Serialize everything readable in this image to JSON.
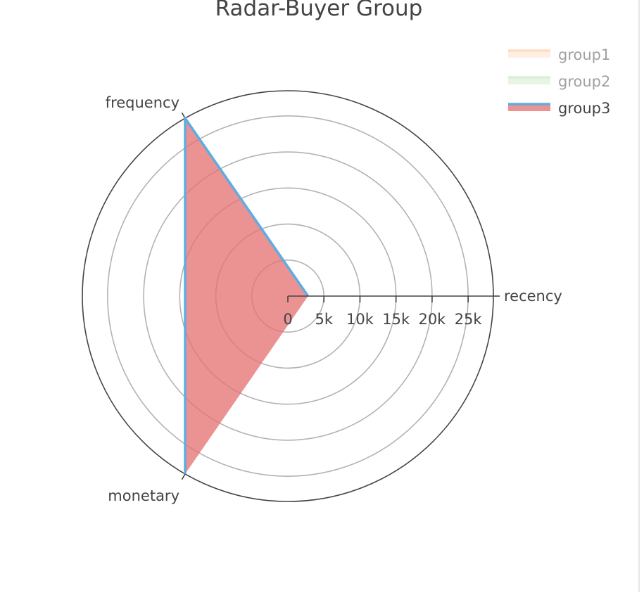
{
  "chart_data": {
    "type": "radar",
    "title": "Radar-Buyer Group",
    "axes": [
      "recency",
      "frequency",
      "monetary"
    ],
    "radial_range": [
      0,
      28500
    ],
    "radial_ticks": [
      0,
      5000,
      10000,
      15000,
      20000,
      25000
    ],
    "radial_tick_labels": [
      "0",
      "5k",
      "10k",
      "15k",
      "20k",
      "25k"
    ],
    "gridlines": true,
    "legend_position": "top-right",
    "series": [
      {
        "name": "group1",
        "values": [
          0,
          0,
          0
        ],
        "line_color": "#ffbb88",
        "fill_color": "#ffd9bf",
        "visible": false
      },
      {
        "name": "group2",
        "values": [
          0,
          0,
          0
        ],
        "line_color": "#b9e0b0",
        "fill_color": "#cdeac6",
        "visible": false
      },
      {
        "name": "group3",
        "values": [
          2800,
          28500,
          28500
        ],
        "line_color": "#5dade2",
        "fill_color": "#e57373",
        "visible": true
      }
    ]
  }
}
